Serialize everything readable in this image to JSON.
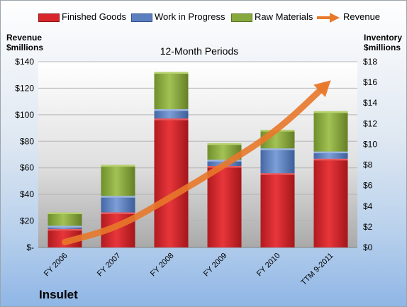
{
  "legend": {
    "finished_goods": "Finished Goods",
    "work_in_progress": "Work in Progress",
    "raw_materials": "Raw Materials",
    "revenue": "Revenue"
  },
  "axes": {
    "left_title_line1": "Revenue",
    "left_title_line2": "$millions",
    "right_title_line1": "Inventory",
    "right_title_line2": "$millions"
  },
  "company": "Insulet",
  "chart_data": {
    "type": "bar",
    "stacked": true,
    "title": "12-Month Periods",
    "categories": [
      "FY 2006",
      "FY 2007",
      "FY 2008",
      "FY 2009",
      "FY 2010",
      "TTM 9-2011"
    ],
    "series": [
      {
        "name": "Finished Goods",
        "axis": "right",
        "values": [
          1.8,
          3.4,
          12.5,
          7.9,
          7.2,
          8.6
        ],
        "color": "#d9262b"
      },
      {
        "name": "Work in Progress",
        "axis": "right",
        "values": [
          0.3,
          1.6,
          0.9,
          0.6,
          2.4,
          0.7
        ],
        "color": "#5b7fbf"
      },
      {
        "name": "Raw Materials",
        "axis": "right",
        "values": [
          1.3,
          3.0,
          3.6,
          1.6,
          1.8,
          3.9
        ],
        "color": "#86a83c"
      },
      {
        "name": "Revenue",
        "axis": "left",
        "type": "line",
        "values": [
          4,
          15,
          38,
          62,
          88,
          126
        ],
        "color": "#e8782a"
      }
    ],
    "y_left": {
      "min": 0,
      "max": 140,
      "ticks": [
        "$-",
        "$20",
        "$40",
        "$60",
        "$80",
        "$100",
        "$120",
        "$140"
      ]
    },
    "y_right": {
      "min": 0,
      "max": 18,
      "ticks": [
        "$0",
        "$2",
        "$4",
        "$6",
        "$8",
        "$10",
        "$12",
        "$14",
        "$16",
        "$18"
      ]
    },
    "grid": true,
    "legend_position": "top"
  }
}
